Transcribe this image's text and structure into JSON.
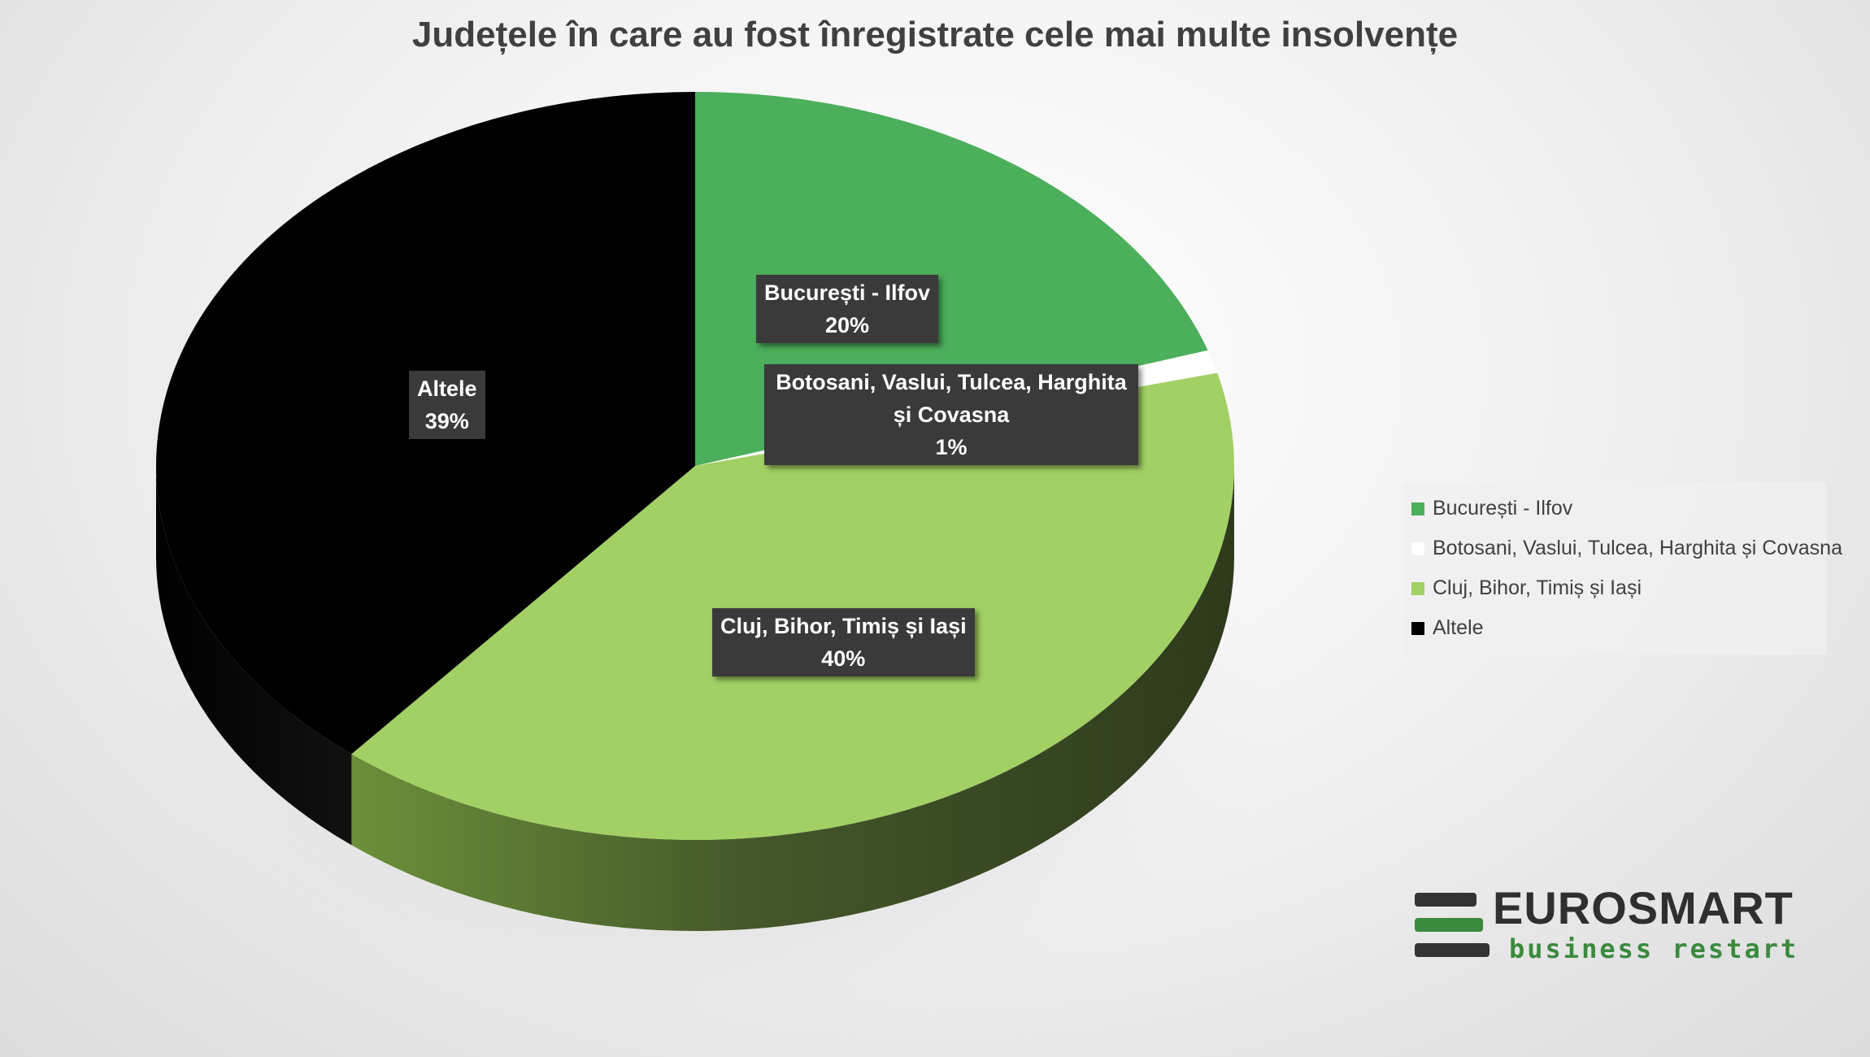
{
  "chart_data": {
    "type": "pie",
    "title": "Județele în care au fost înregistrate cele mai multe insolvențe",
    "slices": [
      {
        "label": "București - Ilfov",
        "value": 20,
        "value_label": "20%",
        "color": "#4CAF5C"
      },
      {
        "label": "Botosani, Vaslui, Tulcea, Harghita și Covasna",
        "value": 1,
        "value_label": "1%",
        "color": "#FFFFFF"
      },
      {
        "label": "Cluj, Bihor, Timiș și Iași",
        "value": 40,
        "value_label": "40%",
        "color": "#A2D064"
      },
      {
        "label": "Altele",
        "value": 39,
        "value_label": "39%",
        "color": "#000000"
      }
    ],
    "legend_position": "right",
    "style": "3d"
  },
  "logo": {
    "name": "EUROSMART",
    "tagline": "business restart",
    "bar_colors": [
      "#333333",
      "#3b8a3e",
      "#333333"
    ]
  }
}
